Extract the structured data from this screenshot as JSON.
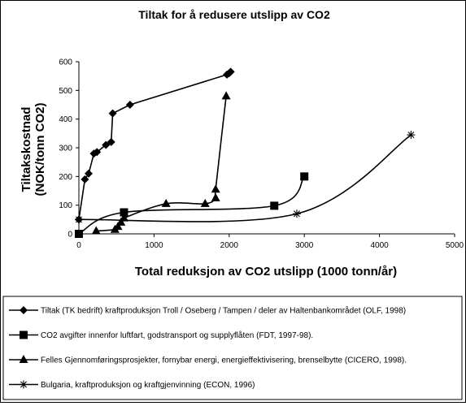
{
  "chart_data": {
    "type": "line",
    "title": "Tiltak for å redusere utslipp av CO2",
    "xlabel": "Total reduksjon av CO2 utslipp (1000 tonn/år)",
    "ylabel_lines": [
      "Tiltakskostnad",
      "(NOK/tonn CO2)"
    ],
    "xlim": [
      0,
      5000
    ],
    "ylim": [
      0,
      600
    ],
    "x_ticks": [
      "0",
      "1000",
      "2000",
      "3000",
      "4000",
      "5000"
    ],
    "y_ticks": [
      "0",
      "100",
      "200",
      "300",
      "400",
      "500",
      "600"
    ],
    "grid": false,
    "legend_position": "bottom",
    "series": [
      {
        "name": "Tiltak (TK bedrift) kraftproduksjon Troll / Oseberg / Tampen / deler av Haltenbankområdet (OLF, 1998)",
        "marker": "diamond",
        "smooth": false,
        "x": [
          0,
          80,
          130,
          200,
          240,
          360,
          430,
          450,
          680,
          1970,
          2000,
          2020
        ],
        "y": [
          50,
          190,
          210,
          280,
          285,
          310,
          320,
          420,
          450,
          555,
          560,
          565
        ]
      },
      {
        "name": "CO2 avgifter innenfor luftfart, godstransport og supplyflåten (FDT, 1997-98).",
        "marker": "square",
        "smooth": true,
        "x": [
          0,
          600,
          2600,
          3000
        ],
        "y": [
          0,
          75,
          98,
          200
        ]
      },
      {
        "name": "Felles Gjennomføringsprosjekter, fornybar energi, energieffektivisering, brenselbytte (CICERO, 1998).",
        "marker": "triangle",
        "smooth": true,
        "x": [
          230,
          480,
          520,
          560,
          600,
          1160,
          1680,
          1820,
          1820,
          1960
        ],
        "y": [
          10,
          15,
          25,
          40,
          55,
          105,
          105,
          125,
          155,
          480
        ]
      },
      {
        "name": "Bulgaria, kraftproduksjon og kraftgjenvinning (ECON, 1996)",
        "marker": "star",
        "smooth": true,
        "x": [
          0,
          2900,
          4420
        ],
        "y": [
          50,
          70,
          345
        ]
      }
    ]
  }
}
